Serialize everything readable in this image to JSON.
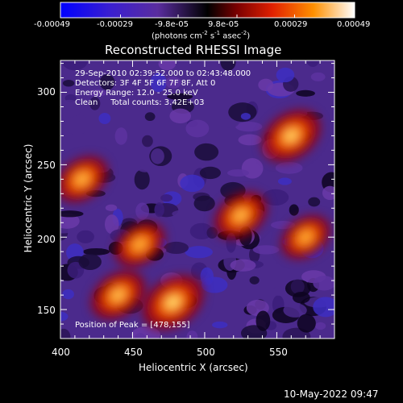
{
  "colorbar": {
    "ticks": [
      "-0.00049",
      "-0.00029",
      "-9.8e-05",
      "9.8e-05",
      "0.00029",
      "0.00049"
    ],
    "tick_values": [
      -0.00049,
      -0.00029,
      -9.8e-05,
      9.8e-05,
      0.00029,
      0.00049
    ],
    "range": [
      -0.00049,
      0.00049
    ],
    "units_text": "(photons cm",
    "units_exp1": "-2",
    "units_mid": " s",
    "units_exp2": "-1",
    "units_mid2": " asec",
    "units_exp3": "-2",
    "units_close": ")",
    "colors": [
      "#0000ff",
      "#5a2dbf",
      "#000000",
      "#9b0000",
      "#ff4500",
      "#ffb000",
      "#ffffff"
    ]
  },
  "chart_data": {
    "type": "heatmap",
    "title": "Reconstructed RHESSI Image",
    "xlabel": "Heliocentric X (arcsec)",
    "ylabel": "Heliocentric Y (arcsec)",
    "xlim": [
      400,
      590
    ],
    "ylim": [
      130,
      322
    ],
    "xticks": [
      400,
      450,
      500,
      550
    ],
    "yticks": [
      150,
      200,
      250,
      300
    ],
    "annotations": [
      "29-Sep-2010 02:39:52.000 to 02:43:48.000",
      "Detectors: 3F 4F 5F 6F 7F 8F, Att 0",
      "Energy Range: 12.0 - 25.0 keV",
      "Clean     Total counts: 3.42E+03"
    ],
    "peak_text": "Position of Peak = [478,155]",
    "peak": [
      478,
      155
    ],
    "bright_sources": [
      {
        "x": 478,
        "y": 155,
        "strength": 1.0
      },
      {
        "x": 560,
        "y": 270,
        "strength": 0.9
      },
      {
        "x": 440,
        "y": 160,
        "strength": 0.75
      },
      {
        "x": 525,
        "y": 215,
        "strength": 0.7
      },
      {
        "x": 415,
        "y": 240,
        "strength": 0.65
      },
      {
        "x": 455,
        "y": 195,
        "strength": 0.6
      },
      {
        "x": 570,
        "y": 200,
        "strength": 0.55
      }
    ]
  },
  "footer": {
    "timestamp": "10-May-2022 09:47"
  }
}
